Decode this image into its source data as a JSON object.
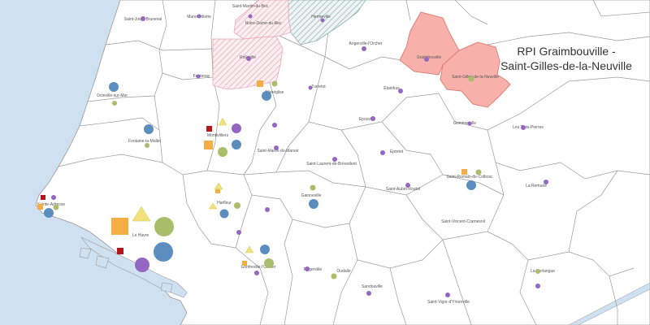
{
  "map": {
    "title_lines": [
      "RPI Graimbouville -",
      "Saint-Gilles-de-la-Neuville"
    ],
    "colors": {
      "sea": "#cfe0f0",
      "land": "#ffffff",
      "border": "#9a9a9a",
      "rpi_fill": "#f7b1aa",
      "rpi_border": "#e08078",
      "hatch_pink": "#e8a8b8",
      "hatch_teal": "#8fb0b0",
      "purple": "#9567c2",
      "blue": "#5c8dbf",
      "green": "#a9bd6a",
      "orange": "#f5ad45",
      "yellow": "#f0e27a",
      "red": "#b5161b"
    },
    "communes": [
      "Saint-Jouin-Bruneval",
      "Mannevillette",
      "Saint-Martin-du-Bec",
      "Notre-Dame-du-Bec",
      "Hermeville",
      "Angerville-l'Orcher",
      "Graimbouville",
      "Saint-Gilles-de-la-Neuville",
      "Rolleville",
      "Turretot",
      "Octeville-sur-Mer",
      "Fontenay",
      "Fontaine-la-Mallet",
      "Montivilliers",
      "Manéglise",
      "Epouville",
      "Étainhus",
      "Gommerville",
      "Les Trois-Pierres",
      "Saint-Martin-du-Manoir",
      "Saint-Laurent-de-Brèvedent",
      "Épretot",
      "Saint-Romain-de-Colbosc",
      "La Remuée",
      "Sainte-Adresse",
      "Le Havre",
      "Harfleur",
      "Gainneville",
      "Saint-Aubin-Routot",
      "Saint-Vincent-Cramesnil",
      "Gonfreville-l'Orcher",
      "Rogerville",
      "Oudalle",
      "Sandouville",
      "Saint-Vigor-d'Ymonville",
      "La Cerlangue"
    ]
  }
}
